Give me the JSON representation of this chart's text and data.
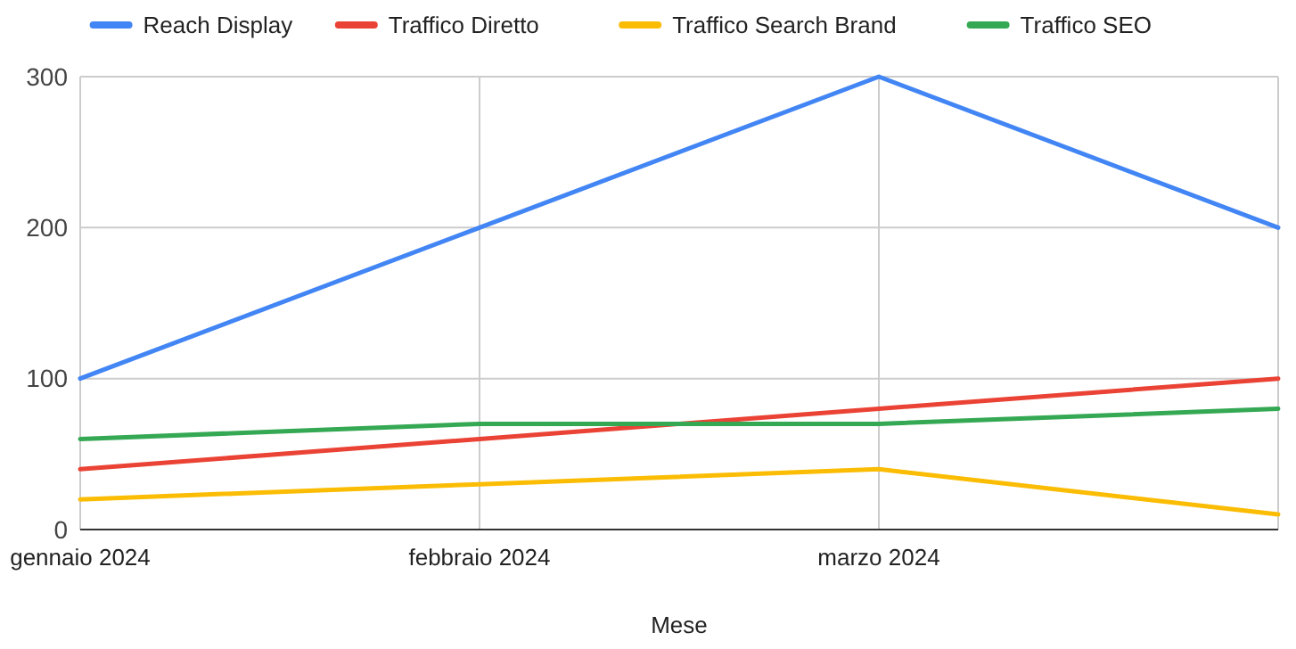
{
  "chart_data": {
    "type": "line",
    "xlabel": "Mese",
    "categories": [
      "gennaio 2024",
      "febbraio 2024",
      "marzo 2024",
      null
    ],
    "series": [
      {
        "name": "Reach Display",
        "color": "#4285f4",
        "values": [
          100,
          200,
          300,
          200
        ]
      },
      {
        "name": "Traffico Diretto",
        "color": "#ea4335",
        "values": [
          40,
          60,
          80,
          100
        ]
      },
      {
        "name": "Traffico Search Brand",
        "color": "#fbbc04",
        "values": [
          20,
          30,
          40,
          10
        ]
      },
      {
        "name": "Traffico SEO",
        "color": "#34a853",
        "values": [
          60,
          70,
          70,
          80
        ]
      }
    ],
    "ylim": [
      0,
      300
    ],
    "yticks": [
      0,
      100,
      200,
      300
    ],
    "grid": true,
    "legend": "top",
    "marker": "none",
    "line_style": "solid"
  }
}
